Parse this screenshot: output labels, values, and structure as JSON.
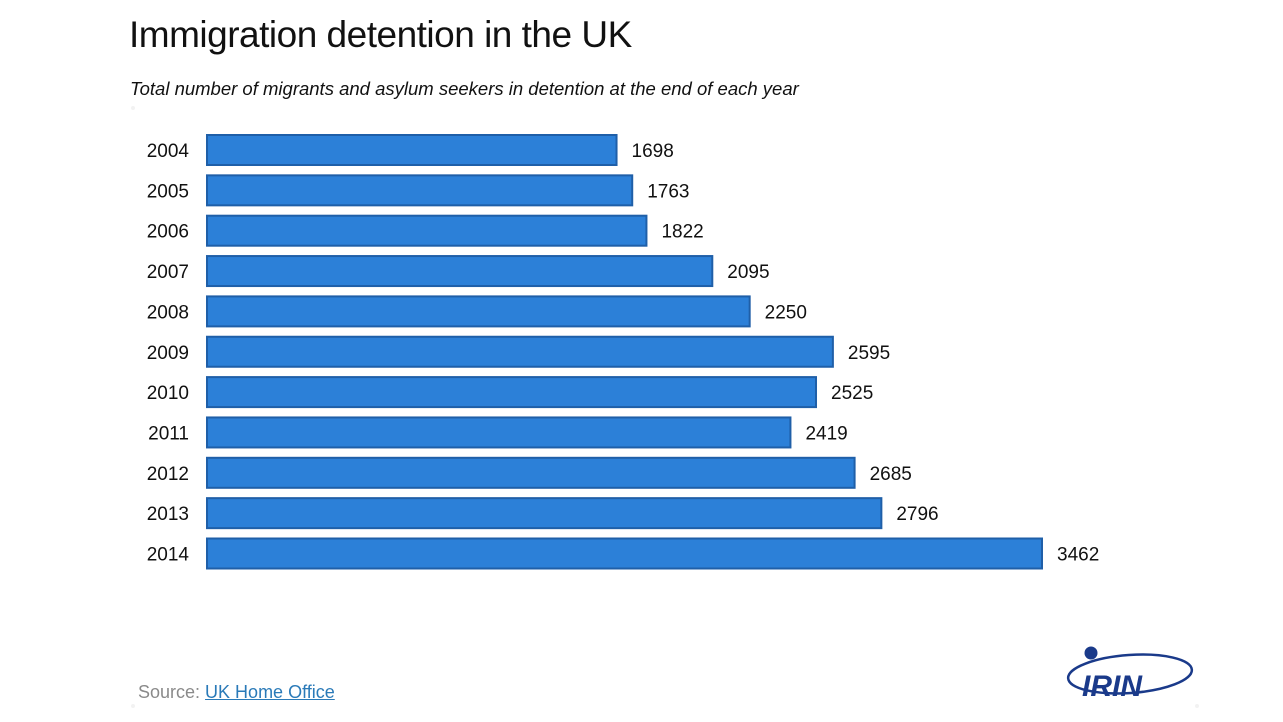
{
  "title": "Immigration detention in the UK",
  "subtitle": "Total number of migrants and asylum seekers in detention at the end of each year",
  "source": {
    "prefix": "Source: ",
    "link_text": "UK Home Office"
  },
  "logo": {
    "text": "IRIN",
    "icon": "irin-logo-icon"
  },
  "colors": {
    "bar_fill": "#2c80d8",
    "bar_stroke": "#1f5fa8",
    "text": "#111111",
    "source_text": "#8a8a8a",
    "link": "#2a7ab8",
    "logo": "#1a3a8a"
  },
  "chart_data": {
    "type": "bar",
    "orientation": "horizontal",
    "title": "Immigration detention in the UK",
    "subtitle": "Total number of migrants and asylum seekers in detention at the end of each year",
    "categories": [
      "2004",
      "2005",
      "2006",
      "2007",
      "2008",
      "2009",
      "2010",
      "2011",
      "2012",
      "2013",
      "2014"
    ],
    "values": [
      1698,
      1763,
      1822,
      2095,
      2250,
      2595,
      2525,
      2419,
      2685,
      2796,
      3462
    ],
    "value_labels": [
      "1698",
      "1763",
      "1822",
      "2095",
      "2250",
      "2595",
      "2525",
      "2419",
      "2685",
      "2796",
      "3462"
    ],
    "xlabel": "",
    "ylabel": "",
    "xlim": [
      0,
      3462
    ],
    "grid": false,
    "legend": "none"
  }
}
